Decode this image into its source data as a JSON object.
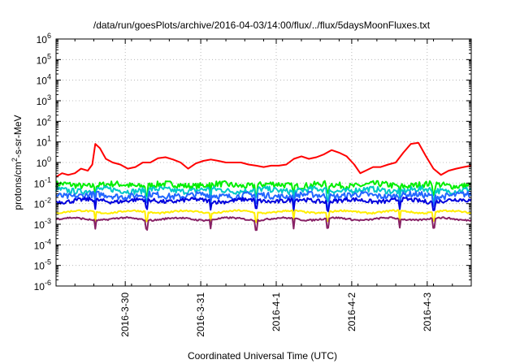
{
  "chart_data": {
    "type": "line",
    "title": "/data/run/goesPlots/archive/2016-04-03/14:00/flux/../flux/5daysMoonFluxes.txt",
    "xlabel": "Coordinated Universal Time (UTC)",
    "ylabel_parts": [
      "protons/cm",
      "2",
      "-s-sr-MeV"
    ],
    "y_scale": "log",
    "ylim_exponents": [
      -6,
      6
    ],
    "y_tick_exponents": [
      -6,
      -5,
      -4,
      -3,
      -2,
      -1,
      0,
      1,
      2,
      3,
      4,
      5,
      6
    ],
    "y_tick_base": "10",
    "x_range_days": [
      "2016-03-29T02:00",
      "2016-04-03T14:00"
    ],
    "x_ticks": [
      "2016-3-30",
      "2016-3-31",
      "2016-4-1",
      "2016-4-2",
      "2016-4-3"
    ],
    "grid": true,
    "series": [
      {
        "color": "#ff0000",
        "x_days": [
          0.0,
          0.08,
          0.16,
          0.25,
          0.33,
          0.42,
          0.48,
          0.52,
          0.58,
          0.66,
          0.75,
          0.85,
          0.95,
          1.05,
          1.15,
          1.25,
          1.35,
          1.45,
          1.55,
          1.65,
          1.75,
          1.85,
          1.95,
          2.05,
          2.15,
          2.25,
          2.35,
          2.45,
          2.55,
          2.65,
          2.75,
          2.85,
          2.95,
          3.05,
          3.15,
          3.25,
          3.35,
          3.45,
          3.55,
          3.65,
          3.75,
          3.85,
          3.95,
          4.03,
          4.1,
          4.2,
          4.3,
          4.4,
          4.5,
          4.6,
          4.7,
          4.8,
          4.9,
          5.0,
          5.1,
          5.2,
          5.3,
          5.4,
          5.5
        ],
        "y": [
          0.2,
          0.3,
          0.25,
          0.3,
          0.5,
          0.4,
          0.8,
          8,
          5,
          1.5,
          1.0,
          0.8,
          0.5,
          0.6,
          1.0,
          1.0,
          1.6,
          1.8,
          1.4,
          1.0,
          0.5,
          0.9,
          1.2,
          1.4,
          1.2,
          1.0,
          1.0,
          1.0,
          0.8,
          0.7,
          0.6,
          0.7,
          0.7,
          0.8,
          1.5,
          2.0,
          1.5,
          1.8,
          2.5,
          4.0,
          3.0,
          2.0,
          0.8,
          0.3,
          0.4,
          0.6,
          0.6,
          0.8,
          1.0,
          3.0,
          8.0,
          9.0,
          2.0,
          0.5,
          0.25,
          0.4,
          0.5,
          0.6,
          0.7
        ]
      },
      {
        "color": "#00ee00",
        "mean": 0.08,
        "spread": 0.15
      },
      {
        "color": "#00c8c8",
        "mean": 0.045,
        "spread": 0.14
      },
      {
        "color": "#2266ff",
        "mean": 0.025,
        "spread": 0.15
      },
      {
        "color": "#0000dd",
        "mean": 0.014,
        "spread": 0.1
      },
      {
        "color": "#ffee00",
        "mean": 0.004,
        "spread": 0.04
      },
      {
        "color": "#882266",
        "mean": 0.0018,
        "spread": 0.04
      }
    ]
  }
}
